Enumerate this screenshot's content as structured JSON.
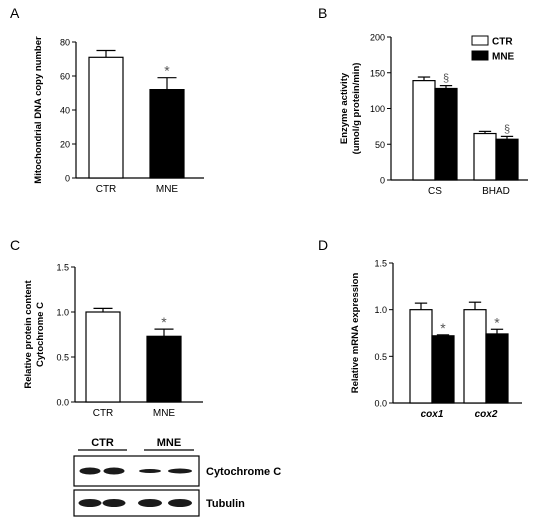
{
  "colors": {
    "ctr_fill": "#ffffff",
    "mne_fill": "#000000",
    "axis": "#000000",
    "annotation": "#555555"
  },
  "chart_data": [
    {
      "panel": "A",
      "type": "bar",
      "ylabel": "Mitochondrial DNA copy number",
      "ylim": [
        0,
        80
      ],
      "yticks": [
        0,
        20,
        40,
        60,
        80
      ],
      "categories": [
        "CTR",
        "MNE"
      ],
      "values": [
        71,
        52
      ],
      "errors": [
        4,
        7
      ],
      "fills": [
        "#ffffff",
        "#000000"
      ],
      "marks": [
        "",
        "*"
      ]
    },
    {
      "panel": "B",
      "type": "bar",
      "ylabel_lines": [
        "Enzyme activity",
        "(umol/g protein/min)"
      ],
      "ylim": [
        0,
        200
      ],
      "yticks": [
        0,
        50,
        100,
        150,
        200
      ],
      "categories": [
        "CS",
        "BHAD"
      ],
      "series": [
        {
          "name": "CTR",
          "values": [
            139,
            65
          ],
          "errors": [
            5,
            3
          ],
          "marks": [
            "",
            ""
          ]
        },
        {
          "name": "MNE",
          "values": [
            128,
            57
          ],
          "errors": [
            4,
            4
          ],
          "marks": [
            "§",
            "§"
          ]
        }
      ],
      "legend": "top-right"
    },
    {
      "panel": "C",
      "type": "bar",
      "ylabel_lines": [
        "Relative protein content",
        "Cytochrome C"
      ],
      "ylim": [
        0,
        1.5
      ],
      "yticks": [
        "0.0",
        "0.5",
        "1.0",
        "1.5"
      ],
      "categories": [
        "CTR",
        "MNE"
      ],
      "values": [
        1.0,
        0.73
      ],
      "errors": [
        0.04,
        0.08
      ],
      "fills": [
        "#ffffff",
        "#000000"
      ],
      "marks": [
        "",
        "*"
      ]
    },
    {
      "panel": "D",
      "type": "bar",
      "ylabel": "Relative mRNA expression",
      "ylim": [
        0,
        1.5
      ],
      "yticks": [
        "0.0",
        "0.5",
        "1.0",
        "1.5"
      ],
      "categories": [
        "cox1",
        "cox2"
      ],
      "categories_italic": true,
      "series": [
        {
          "name": "CTR",
          "values": [
            1.0,
            1.0
          ],
          "errors": [
            0.07,
            0.08
          ],
          "marks": [
            "",
            ""
          ]
        },
        {
          "name": "MNE",
          "values": [
            0.72,
            0.74
          ],
          "errors": [
            0.01,
            0.05
          ],
          "marks": [
            "*",
            "*"
          ]
        }
      ]
    }
  ],
  "western_blot": {
    "groups": [
      "CTR",
      "MNE"
    ],
    "bands": [
      "Cytochrome C",
      "Tubulin"
    ]
  }
}
